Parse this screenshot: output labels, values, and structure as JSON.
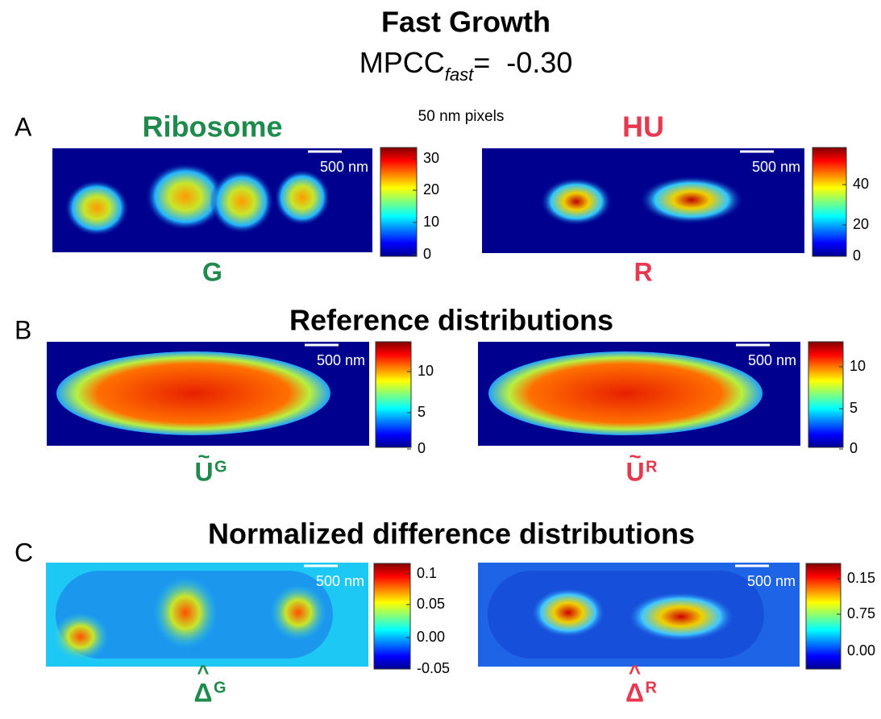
{
  "title": "Fast Growth",
  "metric": {
    "name": "MPCC",
    "subscript": "fast",
    "value": "=  -0.30"
  },
  "pixel_note": "50 nm pixels",
  "scale_bar": "500 nm",
  "rows": [
    {
      "letter": "A",
      "heading": null,
      "panels": [
        {
          "title": "Ribosome",
          "label": "G",
          "sup": null,
          "ticks": [
            "0",
            "10",
            "20",
            "30"
          ]
        },
        {
          "title": "HU",
          "label": "R",
          "sup": null,
          "ticks": [
            "0",
            "20",
            "40"
          ]
        }
      ]
    },
    {
      "letter": "B",
      "heading": "Reference distributions",
      "panels": [
        {
          "title": null,
          "label": "U",
          "sup": "G",
          "ticks": [
            "0",
            "5",
            "10"
          ]
        },
        {
          "title": null,
          "label": "U",
          "sup": "R",
          "ticks": [
            "0",
            "5",
            "10"
          ]
        }
      ]
    },
    {
      "letter": "C",
      "heading": "Normalized difference distributions",
      "panels": [
        {
          "title": null,
          "label": "Δ",
          "sup": "G",
          "ticks": [
            "-0.05",
            "0.00",
            "0.05",
            "0.1"
          ]
        },
        {
          "title": null,
          "label": "Δ",
          "sup": "R",
          "ticks": [
            "0.00",
            "0.75",
            "0.15"
          ]
        }
      ]
    }
  ]
}
